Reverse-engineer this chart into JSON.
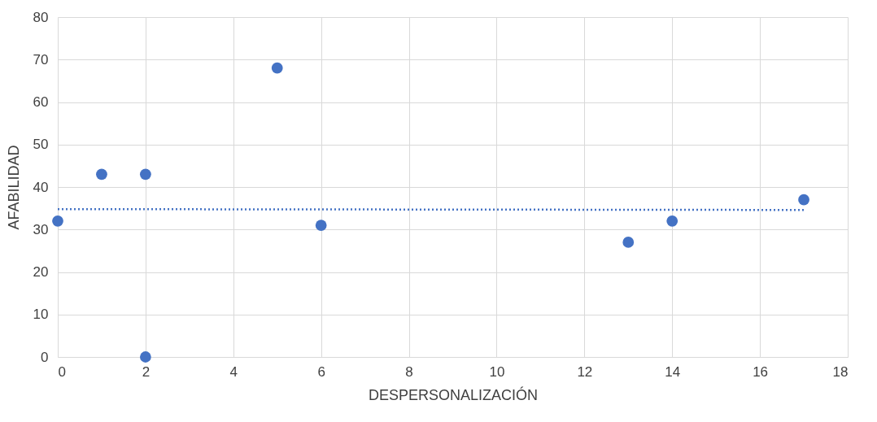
{
  "chart_data": {
    "type": "scatter",
    "xlabel": "DESPERSONALIZACIÓN",
    "ylabel": "AFABILIDAD",
    "series": [
      {
        "color": "#4472c4",
        "marker": "circle",
        "x": [
          0,
          1,
          2,
          2,
          5,
          6,
          13,
          14,
          17
        ],
        "values": [
          32,
          43,
          43,
          0,
          68,
          31,
          27,
          32,
          37
        ]
      },
      {
        "type": "line",
        "color": "#4472c4",
        "line_style": "dotted",
        "marker": "none",
        "x": [
          0,
          17
        ],
        "values": [
          34.8,
          34.6
        ]
      }
    ],
    "xlim": [
      0,
      18
    ],
    "xticks": [
      0,
      2,
      4,
      6,
      8,
      10,
      12,
      14,
      16,
      18
    ],
    "ylim": [
      0,
      80
    ],
    "yticks": [
      0,
      10,
      20,
      30,
      40,
      50,
      60,
      70,
      80
    ],
    "grid": true
  }
}
